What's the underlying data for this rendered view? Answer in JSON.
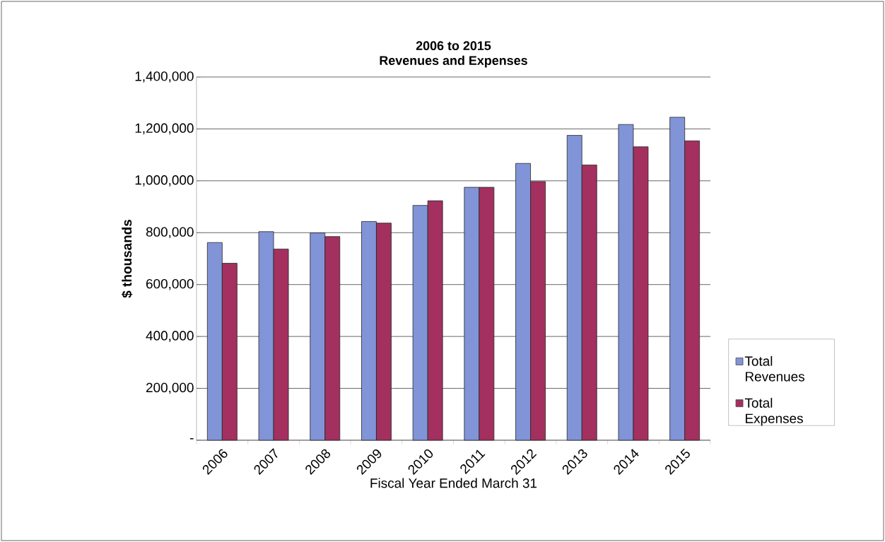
{
  "chart_data": {
    "type": "bar",
    "title": "2006 to 2015",
    "subtitle": "Revenues and Expenses",
    "xlabel": "Fiscal Year Ended March 31",
    "ylabel": "$ thousands",
    "categories": [
      "2006",
      "2007",
      "2008",
      "2009",
      "2010",
      "2011",
      "2012",
      "2013",
      "2014",
      "2015"
    ],
    "series": [
      {
        "name": "Total Revenues",
        "color": "#8194d8",
        "values": [
          762000,
          804000,
          799000,
          843000,
          905000,
          975000,
          1067000,
          1175000,
          1217000,
          1245000
        ]
      },
      {
        "name": "Total Expenses",
        "color": "#a3305f",
        "values": [
          682000,
          737000,
          785000,
          837000,
          923000,
          975000,
          997000,
          1061000,
          1131000,
          1154000
        ]
      }
    ],
    "ylim": [
      0,
      1400000
    ],
    "yticks": [
      {
        "value": 0,
        "label": "-"
      },
      {
        "value": 200000,
        "label": "200,000"
      },
      {
        "value": 400000,
        "label": "400,000"
      },
      {
        "value": 600000,
        "label": "600,000"
      },
      {
        "value": 800000,
        "label": "800,000"
      },
      {
        "value": 1000000,
        "label": "1,000,000"
      },
      {
        "value": 1200000,
        "label": "1,200,000"
      },
      {
        "value": 1400000,
        "label": "1,400,000"
      }
    ],
    "grid": "y",
    "legend": "right"
  }
}
